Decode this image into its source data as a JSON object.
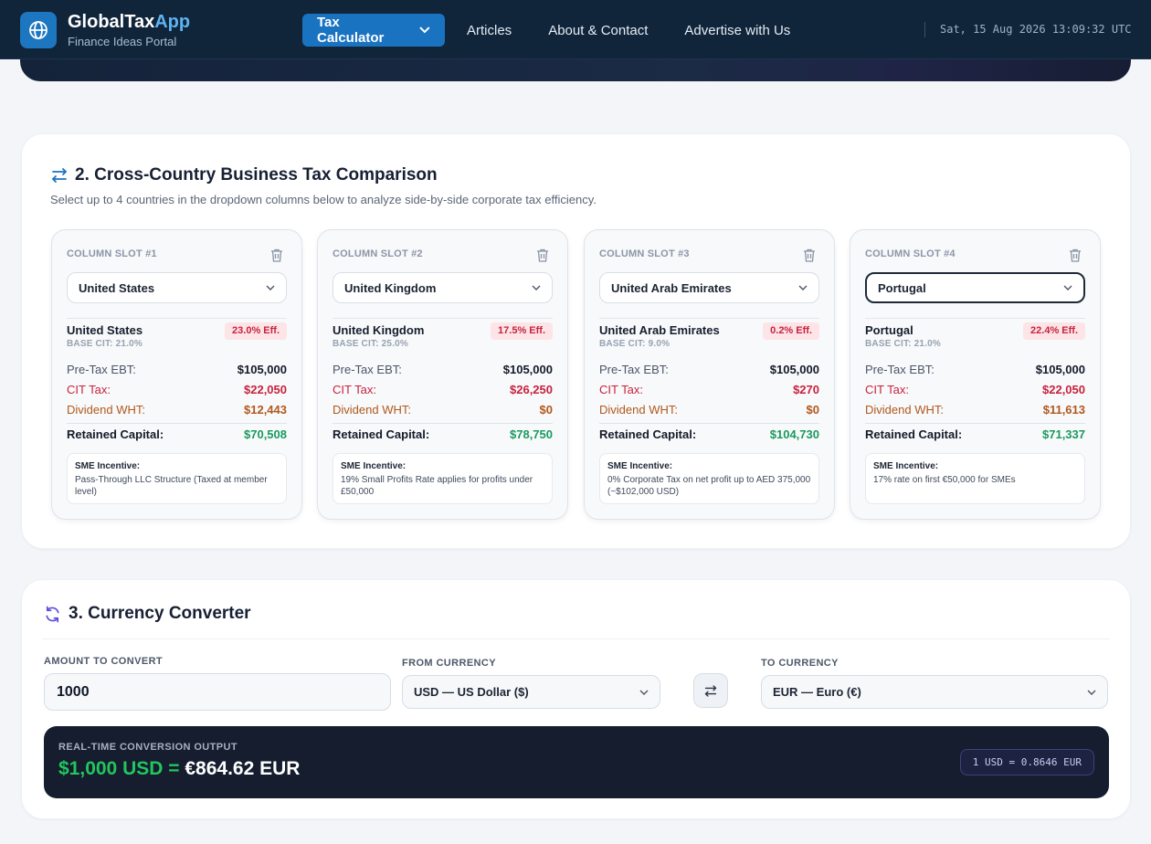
{
  "header": {
    "brand_name_main": "GlobalTax",
    "brand_name_accent": "App",
    "brand_subtitle": "Finance Ideas Portal",
    "nav": {
      "calculator": "Tax Calculator",
      "articles": "Articles",
      "about": "About & Contact",
      "advertise": "Advertise with Us"
    },
    "clock": "Sat, 15 Aug 2026 13:09:32 UTC",
    "icons": {
      "logo": "globe-icon",
      "calculator_caret": "chevron-down-icon"
    }
  },
  "comparison": {
    "title": "2. Cross-Country Business Tax Comparison",
    "description": "Select up to 4 countries in the dropdown columns below to analyze side-by-side corporate tax efficiency.",
    "labels": {
      "pretax": "Pre-Tax EBT:",
      "cit": "CIT Tax:",
      "wht": "Dividend WHT:",
      "retained": "Retained Capital:",
      "sme": "SME Incentive:"
    },
    "slots": [
      {
        "slot_label": "COLUMN SLOT #1",
        "selected": "United States",
        "country": "United States",
        "base_cit": "BASE CIT: 21.0%",
        "eff": "23.0% Eff.",
        "pretax": "$105,000",
        "cit": "$22,050",
        "wht": "$12,443",
        "retained": "$70,508",
        "sme": "Pass-Through LLC Structure (Taxed at member level)"
      },
      {
        "slot_label": "COLUMN SLOT #2",
        "selected": "United Kingdom",
        "country": "United Kingdom",
        "base_cit": "BASE CIT: 25.0%",
        "eff": "17.5% Eff.",
        "pretax": "$105,000",
        "cit": "$26,250",
        "wht": "$0",
        "retained": "$78,750",
        "sme": "19% Small Profits Rate applies for profits under £50,000"
      },
      {
        "slot_label": "COLUMN SLOT #3",
        "selected": "United Arab Emirates",
        "country": "United Arab Emirates",
        "base_cit": "BASE CIT: 9.0%",
        "eff": "0.2% Eff.",
        "pretax": "$105,000",
        "cit": "$270",
        "wht": "$0",
        "retained": "$104,730",
        "sme": "0% Corporate Tax on net profit up to AED 375,000 (~$102,000 USD)"
      },
      {
        "slot_label": "COLUMN SLOT #4",
        "selected": "Portugal",
        "country": "Portugal",
        "base_cit": "BASE CIT: 21.0%",
        "eff": "22.4% Eff.",
        "pretax": "$105,000",
        "cit": "$22,050",
        "wht": "$11,613",
        "retained": "$71,337",
        "sme": "17% rate on first €50,000 for SMEs"
      }
    ],
    "colors": {
      "cit": "#c8223d",
      "wht": "#b2581b",
      "retained": "#1a9a5e",
      "accent": "#1a73c0"
    }
  },
  "currency": {
    "title": "3. Currency Converter",
    "amount_label": "AMOUNT TO CONVERT",
    "amount_value": "1000",
    "from_label": "FROM CURRENCY",
    "from_value": "USD — US Dollar ($)",
    "to_label": "TO CURRENCY",
    "to_value": "EUR — Euro (€)",
    "output_label": "REAL-TIME CONVERSION OUTPUT",
    "output_source": "$1,000 USD =",
    "output_target": "€864.62 EUR",
    "rate": "1 USD = 0.8646 EUR",
    "colors": {
      "source": "#22c55e",
      "panel": "#151d2e"
    }
  }
}
